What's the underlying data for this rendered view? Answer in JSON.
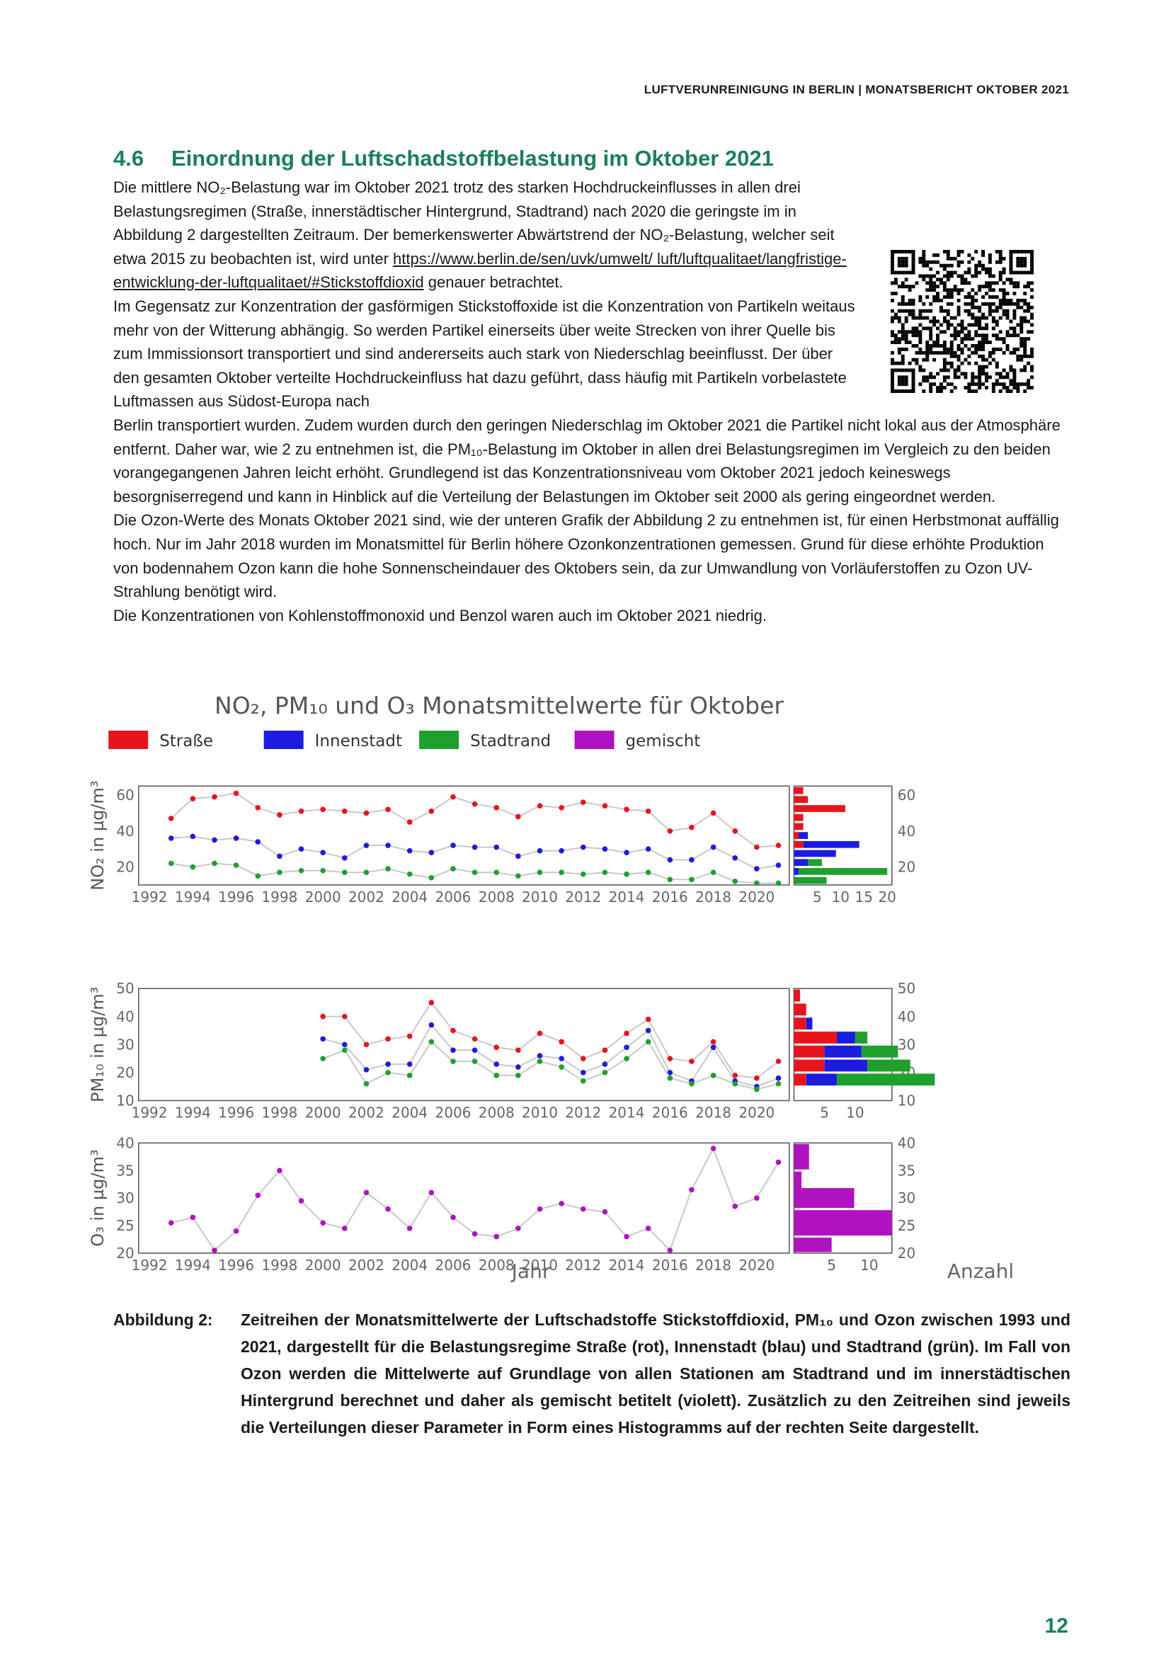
{
  "header": "LUFTVERUNREINIGUNG IN BERLIN | MONATSBERICHT OKTOBER 2021",
  "section": {
    "number": "4.6",
    "title": "Einordnung der Luftschadstoffbelastung im Oktober 2021"
  },
  "paragraphs": {
    "p1_a": "Die mittlere NO₂-Belastung war im Oktober 2021 trotz des starken Hochdruckeinflusses in allen drei Belastungsregimen (Straße, innerstädtischer Hintergrund, Stadtrand) nach 2020 die geringste im in Abbildung 2 dargestellten Zeitraum. Der bemerkenswerter Abwärtstrend der NO₂-Belastung, welcher seit etwa 2015 zu beobachten ist, wird unter",
    "p1_link": "https://www.berlin.de/sen/uvk/umwelt/ luft/luftqualitaet/langfristige-entwicklung-der-luftqualitaet/#Stickstoffdioxid",
    "p1_b": "genauer betrachtet.",
    "p2_a": "Im Gegensatz zur Konzentration der gasförmigen Stickstoffoxide ist die Konzentration von Partikeln weitaus mehr von der Witterung abhängig. So werden Partikel einerseits über weite Strecken von ihrer Quelle bis zum Immissionsort transportiert und sind andererseits auch stark von Niederschlag beeinflusst. Der über den gesamten Oktober verteilte Hochdruckeinfluss hat dazu geführt, dass häufig mit Partikeln vorbelastete Luftmassen aus Südost-Europa nach",
    "p2_b": "Berlin transportiert wurden. Zudem wurden durch den geringen Niederschlag im Oktober 2021 die Partikel nicht lokal aus der Atmosphäre entfernt. Daher war, wie 2 zu entnehmen ist, die PM₁₀-Belastung im Oktober in allen drei Belastungsregimen im Vergleich zu den beiden vorangegangenen Jahren leicht erhöht. Grundlegend ist das Konzentrationsniveau vom Oktober 2021 jedoch keineswegs besorgniserregend und kann in Hinblick auf die Verteilung der Belastungen im Oktober seit 2000 als gering eingeordnet werden.",
    "p3": "Die Ozon-Werte des Monats Oktober 2021 sind, wie der unteren Grafik der Abbildung 2 zu entnehmen ist, für einen Herbstmonat auffällig hoch. Nur im Jahr 2018 wurden im Monatsmittel für Berlin höhere Ozonkonzentrationen gemessen. Grund für diese erhöhte Produktion von bodennahem Ozon kann die hohe Sonnenscheindauer des Oktobers sein, da zur Umwandlung von Vorläuferstoffen zu Ozon UV-Strahlung benötigt wird.",
    "p4": "Die Konzentrationen von Kohlenstoffmonoxid und Benzol waren auch im Oktober 2021 niedrig."
  },
  "caption": {
    "label": "Abbildung 2:",
    "text": "Zeitreihen der Monatsmittelwerte der Luftschadstoffe Stickstoffdioxid, PM₁₀ und Ozon zwischen 1993 und 2021, dargestellt für die Belastungsregime Straße (rot), Innenstadt (blau) und Stadtrand (grün). Im Fall von Ozon werden die Mittelwerte auf Grundlage von allen Stationen am Stadtrand und im innerstädtischen Hintergrund berechnet und daher als gemischt betitelt (violett). Zusätzlich zu den Zeitreihen sind jeweils die Verteilungen dieser Parameter in Form eines Histogramms auf der rechten Seite dargestellt."
  },
  "page_number": "12",
  "colors": {
    "strasse": "#e8141c",
    "innenstadt": "#1c1ce0",
    "stadtrand": "#1fa02e",
    "gemischt": "#b012c0",
    "accent": "#1c7f57"
  },
  "chart_data": {
    "type": "line",
    "title": "NO₂, PM₁₀ und O₃ Monatsmittelwerte für Oktober",
    "xlabel": "Jahr",
    "xlabel_hist": "Anzahl",
    "legend": [
      "Straße",
      "Innenstadt",
      "Stadtrand",
      "gemischt"
    ],
    "x_ticks": [
      "1992",
      "1994",
      "1996",
      "1998",
      "2000",
      "2002",
      "2004",
      "2006",
      "2008",
      "2010",
      "2012",
      "2014",
      "2016",
      "2018",
      "2020"
    ],
    "panels": [
      {
        "ylabel": "NO₂ in µg/m³",
        "ylim": [
          10,
          65
        ],
        "y_ticks": [
          20,
          40,
          60
        ],
        "hist_ticks": [
          "5",
          "10",
          "15",
          "20"
        ],
        "hist_xmax": 21,
        "series": [
          {
            "name": "Straße",
            "color": "#e8141c",
            "x": [
              1993,
              1994,
              1995,
              1996,
              1997,
              1998,
              1999,
              2000,
              2001,
              2002,
              2003,
              2004,
              2005,
              2006,
              2007,
              2008,
              2009,
              2010,
              2011,
              2012,
              2013,
              2014,
              2015,
              2016,
              2017,
              2018,
              2019,
              2020,
              2021
            ],
            "y": [
              47,
              58,
              59,
              61,
              53,
              49,
              51,
              52,
              51,
              50,
              52,
              45,
              51,
              59,
              55,
              53,
              48,
              54,
              53,
              56,
              54,
              52,
              51,
              40,
              42,
              50,
              40,
              31,
              32
            ]
          },
          {
            "name": "Innenstadt",
            "color": "#1c1ce0",
            "x": [
              1993,
              1994,
              1995,
              1996,
              1997,
              1998,
              1999,
              2000,
              2001,
              2002,
              2003,
              2004,
              2005,
              2006,
              2007,
              2008,
              2009,
              2010,
              2011,
              2012,
              2013,
              2014,
              2015,
              2016,
              2017,
              2018,
              2019,
              2020,
              2021
            ],
            "y": [
              36,
              37,
              35,
              36,
              34,
              26,
              30,
              28,
              25,
              32,
              32,
              29,
              28,
              32,
              31,
              31,
              26,
              29,
              29,
              31,
              30,
              28,
              30,
              24,
              24,
              31,
              25,
              19,
              21
            ]
          },
          {
            "name": "Stadtrand",
            "color": "#1fa02e",
            "x": [
              1993,
              1994,
              1995,
              1996,
              1997,
              1998,
              1999,
              2000,
              2001,
              2002,
              2003,
              2004,
              2005,
              2006,
              2007,
              2008,
              2009,
              2010,
              2011,
              2012,
              2013,
              2014,
              2015,
              2016,
              2017,
              2018,
              2019,
              2020,
              2021
            ],
            "y": [
              22,
              20,
              22,
              21,
              15,
              17,
              18,
              18,
              17,
              17,
              19,
              16,
              14,
              19,
              17,
              17,
              15,
              17,
              17,
              16,
              17,
              16,
              17,
              13,
              13,
              17,
              12,
              11,
              11
            ]
          }
        ],
        "hist": [
          {
            "from": 60,
            "to": 65,
            "Straße": 2
          },
          {
            "from": 55,
            "to": 60,
            "Straße": 3
          },
          {
            "from": 50,
            "to": 55,
            "Straße": 11
          },
          {
            "from": 45,
            "to": 50,
            "Straße": 2
          },
          {
            "from": 40,
            "to": 45,
            "Straße": 2
          },
          {
            "from": 35,
            "to": 40,
            "Straße": 1,
            "Innenstadt": 2
          },
          {
            "from": 30,
            "to": 35,
            "Straße": 2,
            "Innenstadt": 12
          },
          {
            "from": 25,
            "to": 30,
            "Innenstadt": 9
          },
          {
            "from": 20,
            "to": 25,
            "Innenstadt": 3,
            "Stadtrand": 3
          },
          {
            "from": 15,
            "to": 20,
            "Innenstadt": 1,
            "Stadtrand": 19
          },
          {
            "from": 10,
            "to": 15,
            "Stadtrand": 7
          }
        ]
      },
      {
        "ylabel": "PM₁₀ in µg/m³",
        "ylim": [
          10,
          50
        ],
        "y_ticks": [
          10,
          20,
          30,
          40,
          50
        ],
        "hist_ticks": [
          "5",
          "10"
        ],
        "hist_xmax": 16,
        "series": [
          {
            "name": "Straße",
            "color": "#e8141c",
            "x": [
              2000,
              2001,
              2002,
              2003,
              2004,
              2005,
              2006,
              2007,
              2008,
              2009,
              2010,
              2011,
              2012,
              2013,
              2014,
              2015,
              2016,
              2017,
              2018,
              2019,
              2020,
              2021
            ],
            "y": [
              40,
              40,
              30,
              32,
              33,
              45,
              35,
              32,
              29,
              28,
              34,
              31,
              25,
              28,
              34,
              39,
              25,
              24,
              31,
              19,
              18,
              24
            ]
          },
          {
            "name": "Innenstadt",
            "color": "#1c1ce0",
            "x": [
              2000,
              2001,
              2002,
              2003,
              2004,
              2005,
              2006,
              2007,
              2008,
              2009,
              2010,
              2011,
              2012,
              2013,
              2014,
              2015,
              2016,
              2017,
              2018,
              2019,
              2020,
              2021
            ],
            "y": [
              32,
              30,
              21,
              23,
              23,
              37,
              28,
              28,
              23,
              22,
              26,
              25,
              20,
              23,
              29,
              35,
              20,
              17,
              29,
              17,
              15,
              18
            ]
          },
          {
            "name": "Stadtrand",
            "color": "#1fa02e",
            "x": [
              2000,
              2001,
              2002,
              2003,
              2004,
              2005,
              2006,
              2007,
              2008,
              2009,
              2010,
              2011,
              2012,
              2013,
              2014,
              2015,
              2016,
              2017,
              2018,
              2019,
              2020,
              2021
            ],
            "y": [
              25,
              28,
              16,
              20,
              19,
              31,
              24,
              24,
              19,
              19,
              24,
              22,
              17,
              20,
              25,
              31,
              18,
              16,
              19,
              16,
              14,
              16
            ]
          }
        ],
        "hist": [
          {
            "from": 45,
            "to": 50,
            "Straße": 1
          },
          {
            "from": 40,
            "to": 45,
            "Straße": 2
          },
          {
            "from": 35,
            "to": 40,
            "Straße": 2,
            "Innenstadt": 1
          },
          {
            "from": 30,
            "to": 35,
            "Straße": 7,
            "Innenstadt": 3,
            "Stadtrand": 2
          },
          {
            "from": 25,
            "to": 30,
            "Straße": 5,
            "Innenstadt": 6,
            "Stadtrand": 6
          },
          {
            "from": 20,
            "to": 25,
            "Straße": 5,
            "Innenstadt": 7,
            "Stadtrand": 7
          },
          {
            "from": 15,
            "to": 20,
            "Straße": 2,
            "Innenstadt": 5,
            "Stadtrand": 16
          }
        ]
      },
      {
        "ylabel": "O₃ in µg/m³",
        "ylim": [
          20,
          40
        ],
        "y_ticks": [
          20,
          25,
          30,
          35,
          40
        ],
        "hist_ticks": [
          "5",
          "10"
        ],
        "hist_xmax": 13,
        "series": [
          {
            "name": "gemischt",
            "color": "#b012c0",
            "x": [
              1993,
              1994,
              1995,
              1996,
              1997,
              1998,
              1999,
              2000,
              2001,
              2002,
              2003,
              2004,
              2005,
              2006,
              2007,
              2008,
              2009,
              2010,
              2011,
              2012,
              2013,
              2014,
              2015,
              2016,
              2017,
              2018,
              2019,
              2020,
              2021
            ],
            "y": [
              25.5,
              26.5,
              20.5,
              24,
              30.5,
              35,
              29.5,
              25.5,
              24.5,
              31,
              28,
              24.5,
              31,
              26.5,
              23.5,
              23,
              24.5,
              28,
              29,
              28,
              27.5,
              23,
              24.5,
              20.5,
              31.5,
              39,
              28.5,
              30,
              36.5
            ]
          }
        ],
        "hist": [
          {
            "from": 35,
            "to": 40,
            "gemischt": 2
          },
          {
            "from": 30,
            "to": 35,
            "gemischt": 1
          },
          {
            "from": 28,
            "to": 32,
            "gemischt": 8
          },
          {
            "from": 23,
            "to": 28,
            "gemischt": 13
          },
          {
            "from": 20,
            "to": 23,
            "gemischt": 5
          }
        ]
      }
    ]
  }
}
